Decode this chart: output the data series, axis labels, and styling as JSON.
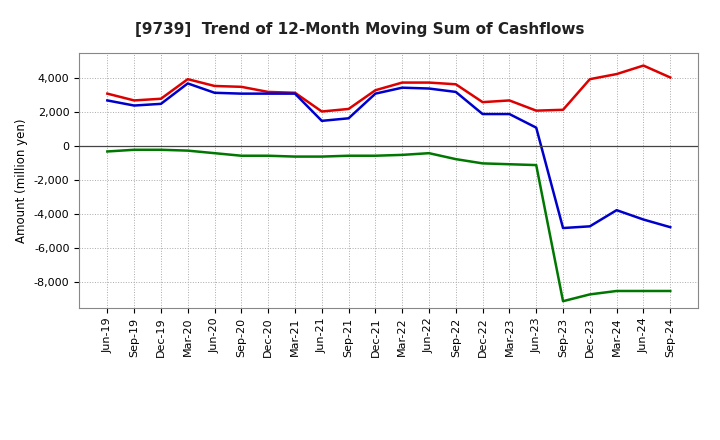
{
  "title": "[9739]  Trend of 12-Month Moving Sum of Cashflows",
  "ylabel": "Amount (million yen)",
  "background_color": "#ffffff",
  "grid_color": "#aaaaaa",
  "ylim": [
    -9500,
    5500
  ],
  "yticks": [
    -8000,
    -6000,
    -4000,
    -2000,
    0,
    2000,
    4000
  ],
  "labels": [
    "Jun-19",
    "Sep-19",
    "Dec-19",
    "Mar-20",
    "Jun-20",
    "Sep-20",
    "Dec-20",
    "Mar-21",
    "Jun-21",
    "Sep-21",
    "Dec-21",
    "Mar-22",
    "Jun-22",
    "Sep-22",
    "Dec-22",
    "Mar-23",
    "Jun-23",
    "Sep-23",
    "Dec-23",
    "Mar-24",
    "Jun-24",
    "Sep-24"
  ],
  "operating": [
    3100,
    2700,
    2800,
    3950,
    3550,
    3500,
    3200,
    3150,
    2050,
    2200,
    3300,
    3750,
    3750,
    3650,
    2600,
    2700,
    2100,
    2150,
    3950,
    4250,
    4750,
    4050
  ],
  "investing": [
    -300,
    -200,
    -200,
    -250,
    -400,
    -550,
    -550,
    -600,
    -600,
    -550,
    -550,
    -500,
    -400,
    -750,
    -1000,
    -1050,
    -1100,
    -9100,
    -8700,
    -8500,
    -8500,
    -8500
  ],
  "free": [
    2700,
    2400,
    2500,
    3700,
    3150,
    3100,
    3100,
    3100,
    1500,
    1650,
    3100,
    3450,
    3400,
    3200,
    1900,
    1900,
    1100,
    -4800,
    -4700,
    -3750,
    -4300,
    -4750
  ],
  "operating_color": "#dd0000",
  "investing_color": "#007700",
  "free_color": "#0000cc",
  "line_width": 1.8,
  "title_fontsize": 11,
  "tick_fontsize": 8,
  "ylabel_fontsize": 8.5
}
